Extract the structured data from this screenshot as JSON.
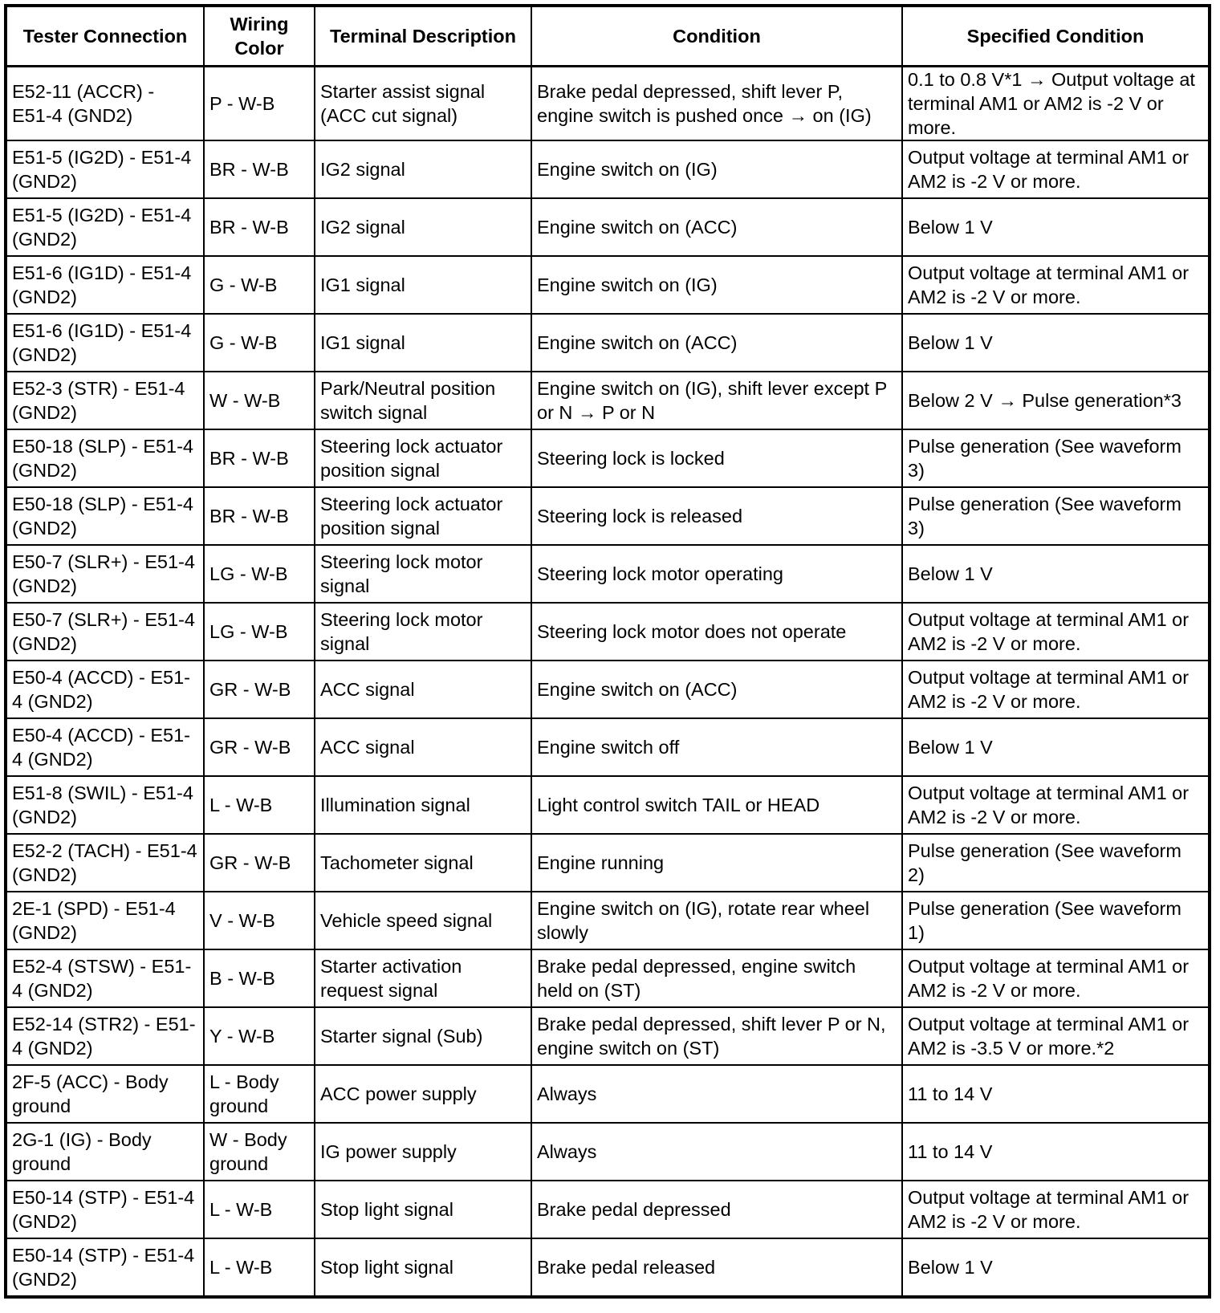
{
  "headers": [
    "Tester Connection",
    "Wiring Color",
    "Terminal Description",
    "Condition",
    "Specified Condition"
  ],
  "rows": [
    [
      "E52-11 (ACCR) - E51-4 (GND2)",
      "P - W-B",
      "Starter assist signal (ACC cut signal)",
      "Brake pedal depressed, shift lever P, engine switch is pushed once → on (IG)",
      "0.1 to 0.8 V*1 → Output voltage at terminal AM1 or AM2 is -2 V or more."
    ],
    [
      "E51-5 (IG2D) - E51-4 (GND2)",
      "BR - W-B",
      "IG2 signal",
      "Engine switch on (IG)",
      "Output voltage at terminal AM1 or AM2 is -2 V or more."
    ],
    [
      "E51-5 (IG2D) - E51-4 (GND2)",
      "BR - W-B",
      "IG2 signal",
      "Engine switch on (ACC)",
      "Below 1 V"
    ],
    [
      "E51-6 (IG1D) - E51-4 (GND2)",
      "G - W-B",
      "IG1 signal",
      "Engine switch on (IG)",
      "Output voltage at terminal AM1 or AM2 is -2 V or more."
    ],
    [
      "E51-6 (IG1D) - E51-4 (GND2)",
      "G - W-B",
      "IG1 signal",
      "Engine switch on (ACC)",
      "Below 1 V"
    ],
    [
      "E52-3 (STR) - E51-4 (GND2)",
      "W - W-B",
      "Park/Neutral position switch signal",
      "Engine switch on (IG), shift lever except P or N → P or N",
      "Below 2 V → Pulse generation*3"
    ],
    [
      "E50-18 (SLP) - E51-4 (GND2)",
      "BR - W-B",
      "Steering lock actuator position signal",
      "Steering lock is locked",
      "Pulse generation (See waveform 3)"
    ],
    [
      "E50-18 (SLP) - E51-4 (GND2)",
      "BR - W-B",
      "Steering lock actuator position signal",
      "Steering lock is released",
      "Pulse generation (See waveform 3)"
    ],
    [
      "E50-7 (SLR+) - E51-4 (GND2)",
      "LG - W-B",
      "Steering lock motor signal",
      "Steering lock motor operating",
      "Below 1 V"
    ],
    [
      "E50-7 (SLR+) - E51-4 (GND2)",
      "LG - W-B",
      "Steering lock motor signal",
      "Steering lock motor does not operate",
      "Output voltage at terminal AM1 or AM2 is -2 V or more."
    ],
    [
      "E50-4 (ACCD) - E51-4 (GND2)",
      "GR - W-B",
      "ACC signal",
      "Engine switch on (ACC)",
      "Output voltage at terminal AM1 or AM2 is -2 V or more."
    ],
    [
      "E50-4 (ACCD) - E51-4 (GND2)",
      "GR - W-B",
      "ACC signal",
      "Engine switch off",
      "Below 1 V"
    ],
    [
      "E51-8 (SWIL) - E51-4 (GND2)",
      "L - W-B",
      "Illumination signal",
      "Light control switch TAIL or HEAD",
      "Output voltage at terminal AM1 or AM2 is -2 V or more."
    ],
    [
      "E52-2 (TACH) - E51-4 (GND2)",
      "GR - W-B",
      "Tachometer signal",
      "Engine running",
      "Pulse generation (See waveform 2)"
    ],
    [
      "2E-1 (SPD) - E51-4 (GND2)",
      "V - W-B",
      "Vehicle speed signal",
      "Engine switch on (IG), rotate rear wheel slowly",
      "Pulse generation (See waveform 1)"
    ],
    [
      "E52-4 (STSW) - E51-4 (GND2)",
      "B - W-B",
      "Starter activation request signal",
      "Brake pedal depressed, engine switch held on (ST)",
      "Output voltage at terminal AM1 or AM2 is -2 V or more."
    ],
    [
      "E52-14 (STR2) - E51-4 (GND2)",
      "Y - W-B",
      "Starter signal (Sub)",
      "Brake pedal depressed, shift lever P or N, engine switch on (ST)",
      "Output voltage at terminal AM1 or AM2 is -3.5 V or more.*2"
    ],
    [
      "2F-5 (ACC) - Body ground",
      "L - Body ground",
      "ACC power supply",
      "Always",
      "11 to 14 V"
    ],
    [
      "2G-1 (IG) - Body ground",
      "W - Body ground",
      "IG power supply",
      "Always",
      "11 to 14 V"
    ],
    [
      "E50-14 (STP) - E51-4 (GND2)",
      "L - W-B",
      "Stop light signal",
      "Brake pedal depressed",
      "Output voltage at terminal AM1 or AM2 is -2 V or more."
    ],
    [
      "E50-14 (STP) - E51-4 (GND2)",
      "L - W-B",
      "Stop light signal",
      "Brake pedal released",
      "Below 1 V"
    ]
  ]
}
